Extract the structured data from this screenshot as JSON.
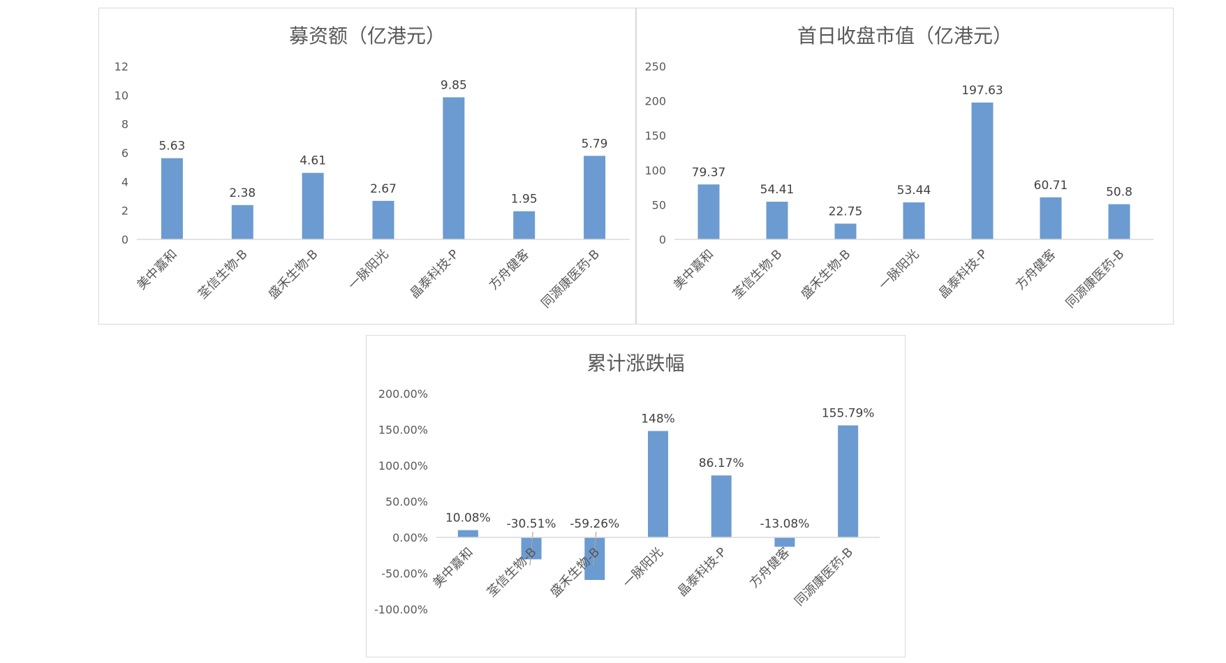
{
  "colors": {
    "bar": "#6b9bd1",
    "axis": "#d9d9d9",
    "text": "#595959"
  },
  "chart_data": [
    {
      "type": "bar",
      "title": "募资额（亿港元）",
      "categories": [
        "美中嘉和",
        "荃信生物-B",
        "盛禾生物-B",
        "一脉阳光",
        "晶泰科技-P",
        "方舟健客",
        "同源康医药-B"
      ],
      "values": [
        5.63,
        2.38,
        4.61,
        2.67,
        9.85,
        1.95,
        5.79
      ],
      "value_labels": [
        "5.63",
        "2.38",
        "4.61",
        "2.67",
        "9.85",
        "1.95",
        "5.79"
      ],
      "ylim": [
        0,
        12
      ],
      "yticks": [
        0,
        2,
        4,
        6,
        8,
        10,
        12
      ],
      "ytick_labels": [
        "0",
        "2",
        "4",
        "6",
        "8",
        "10",
        "12"
      ],
      "grid": false,
      "legend": "none"
    },
    {
      "type": "bar",
      "title": "首日收盘市值（亿港元）",
      "categories": [
        "美中嘉和",
        "荃信生物-B",
        "盛禾生物-B",
        "一脉阳光",
        "晶泰科技-P",
        "方舟健客",
        "同源康医药-B"
      ],
      "values": [
        79.37,
        54.41,
        22.75,
        53.44,
        197.63,
        60.71,
        50.8
      ],
      "value_labels": [
        "79.37",
        "54.41",
        "22.75",
        "53.44",
        "197.63",
        "60.71",
        "50.8"
      ],
      "ylim": [
        0,
        250
      ],
      "yticks": [
        0,
        50,
        100,
        150,
        200,
        250
      ],
      "ytick_labels": [
        "0",
        "50",
        "100",
        "150",
        "200",
        "250"
      ],
      "grid": false,
      "legend": "none"
    },
    {
      "type": "bar",
      "title": "累计涨跌幅",
      "categories": [
        "美中嘉和",
        "荃信生物-B",
        "盛禾生物-B",
        "一脉阳光",
        "晶泰科技-P",
        "方舟健客",
        "同源康医药-B"
      ],
      "values": [
        10.08,
        -30.51,
        -59.26,
        148,
        86.17,
        -13.08,
        155.79
      ],
      "value_labels": [
        "10.08%",
        "-30.51%",
        "-59.26%",
        "148%",
        "86.17%",
        "-13.08%",
        "155.79%"
      ],
      "ylim": [
        -100,
        200
      ],
      "yticks": [
        -100,
        -50,
        0,
        50,
        100,
        150,
        200
      ],
      "ytick_labels": [
        "-100.00%",
        "-50.00%",
        "0.00%",
        "50.00%",
        "100.00%",
        "150.00%",
        "200.00%"
      ],
      "grid": false,
      "legend": "none"
    }
  ]
}
